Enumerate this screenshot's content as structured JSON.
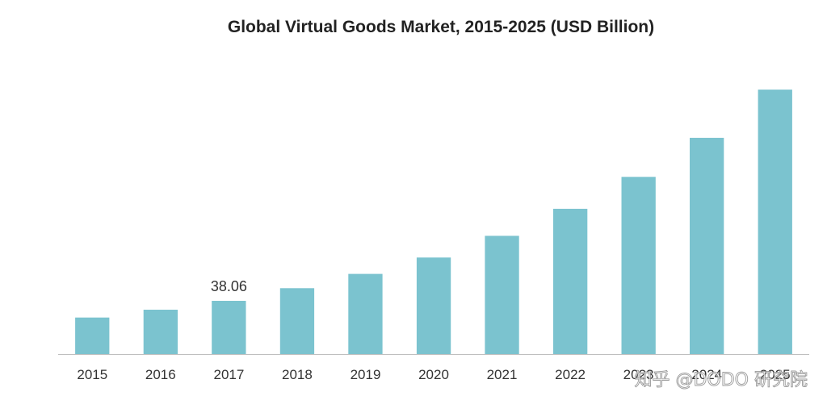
{
  "chart_data": {
    "type": "bar",
    "title": "Global Virtual Goods Market, 2015-2025 (USD Billion)",
    "xlabel": "",
    "ylabel": "",
    "categories": [
      "2015",
      "2016",
      "2017",
      "2018",
      "2019",
      "2020",
      "2021",
      "2022",
      "2023",
      "2024",
      "2025"
    ],
    "values": [
      26.1,
      31.7,
      38.06,
      47.1,
      57.3,
      69.0,
      84.5,
      103.8,
      126.6,
      154.5,
      189.0
    ],
    "data_labels": [
      {
        "category": "2017",
        "text": "38.06"
      }
    ],
    "ylim": [
      0,
      200
    ],
    "grid": false,
    "legend": "none",
    "bar_color": "#7bc3cf",
    "axis_color": "#bfbfbf"
  },
  "watermark": "知乎 @DODO 研究院"
}
